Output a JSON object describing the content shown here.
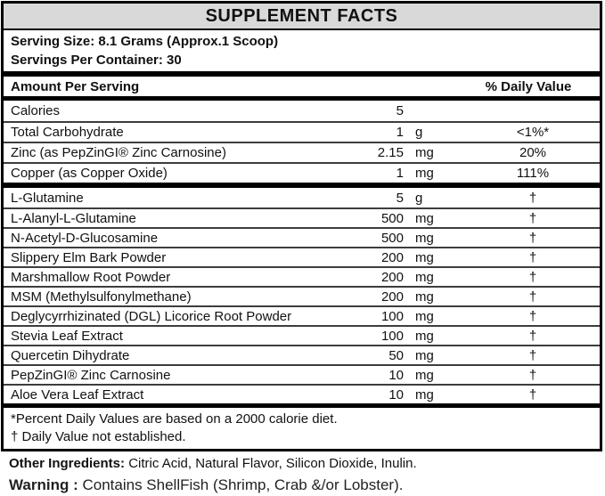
{
  "title": "SUPPLEMENT FACTS",
  "serving": {
    "size_line": "Serving Size: 8.1 Grams (Approx.1 Scoop)",
    "per_container_line": "Servings Per Container: 30"
  },
  "table": {
    "amount_header": "Amount Per Serving",
    "dv_header": "% Daily Value",
    "section1": [
      {
        "name": "Calories",
        "amount": "5",
        "unit": "",
        "dv": ""
      },
      {
        "name": "Total Carbohydrate",
        "amount": "1",
        "unit": "g",
        "dv": "<1%*"
      },
      {
        "name": "Zinc (as PepZinGI® Zinc Carnosine)",
        "amount": "2.15",
        "unit": "mg",
        "dv": "20%"
      },
      {
        "name": "Copper (as Copper Oxide)",
        "amount": "1",
        "unit": "mg",
        "dv": "111%"
      }
    ],
    "section2": [
      {
        "name": "L-Glutamine",
        "amount": "5",
        "unit": "g",
        "dv": "†"
      },
      {
        "name": "L-Alanyl-L-Glutamine",
        "amount": "500",
        "unit": "mg",
        "dv": "†"
      },
      {
        "name": "N-Acetyl-D-Glucosamine",
        "amount": "500",
        "unit": "mg",
        "dv": "†"
      },
      {
        "name": "Slippery Elm Bark Powder",
        "amount": "200",
        "unit": "mg",
        "dv": "†"
      },
      {
        "name": "Marshmallow Root Powder",
        "amount": "200",
        "unit": "mg",
        "dv": "†"
      },
      {
        "name": "MSM (Methylsulfonylmethane)",
        "amount": "200",
        "unit": "mg",
        "dv": "†"
      },
      {
        "name": "Deglycyrrhizinated (DGL) Licorice Root Powder",
        "amount": "100",
        "unit": "mg",
        "dv": "†"
      },
      {
        "name": "Stevia Leaf Extract",
        "amount": "100",
        "unit": "mg",
        "dv": "†"
      },
      {
        "name": "Quercetin Dihydrate",
        "amount": "50",
        "unit": "mg",
        "dv": "†"
      },
      {
        "name": "PepZinGI® Zinc Carnosine",
        "amount": "10",
        "unit": "mg",
        "dv": "†"
      },
      {
        "name": "Aloe Vera Leaf Extract",
        "amount": "10",
        "unit": "mg",
        "dv": "†"
      }
    ]
  },
  "footnotes": [
    "*Percent Daily Values are based on a 2000 calorie diet.",
    "† Daily Value not established."
  ],
  "other_ingredients": {
    "label": "Other Ingredients:",
    "text": "Citric Acid, Natural Flavor, Silicon Dioxide, Inulin."
  },
  "warning": {
    "label": "Warning :",
    "text": "Contains ShellFish (Shrimp, Crab &/or Lobster)."
  }
}
